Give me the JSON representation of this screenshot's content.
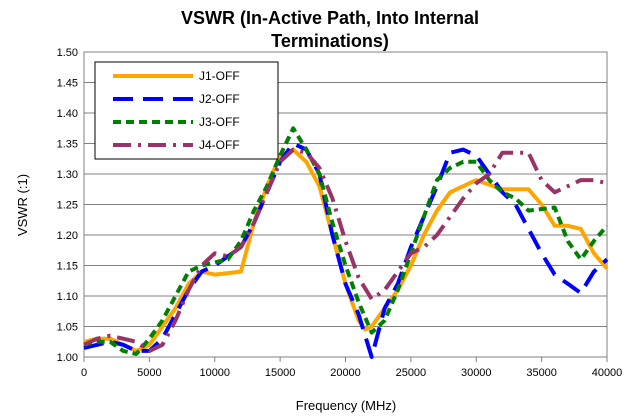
{
  "chart_data": {
    "type": "line",
    "title_line1": "VSWR (In-Active Path, Into Internal",
    "title_line2": "Terminations)",
    "xlabel": "Frequency (MHz)",
    "ylabel": "VSWR (:1)",
    "xlim": [
      0,
      40000
    ],
    "ylim": [
      1.0,
      1.5
    ],
    "xticks": [
      0,
      5000,
      10000,
      15000,
      20000,
      25000,
      30000,
      35000,
      40000
    ],
    "yticks": [
      1.0,
      1.05,
      1.1,
      1.15,
      1.2,
      1.25,
      1.3,
      1.35,
      1.4,
      1.45,
      1.5
    ],
    "grid": true,
    "legend_position": "top-left",
    "series": [
      {
        "name": "J1-OFF",
        "color": "#FFA500",
        "dash": "solid",
        "points": [
          [
            0,
            1.025
          ],
          [
            1000,
            1.03
          ],
          [
            2000,
            1.03
          ],
          [
            3000,
            1.02
          ],
          [
            4000,
            1.01
          ],
          [
            5000,
            1.02
          ],
          [
            6000,
            1.05
          ],
          [
            7000,
            1.08
          ],
          [
            8000,
            1.12
          ],
          [
            9000,
            1.14
          ],
          [
            10000,
            1.135
          ],
          [
            12000,
            1.14
          ],
          [
            13000,
            1.22
          ],
          [
            14000,
            1.28
          ],
          [
            15000,
            1.33
          ],
          [
            16000,
            1.34
          ],
          [
            17000,
            1.32
          ],
          [
            18000,
            1.28
          ],
          [
            19000,
            1.2
          ],
          [
            20000,
            1.12
          ],
          [
            21000,
            1.06
          ],
          [
            21500,
            1.045
          ],
          [
            22000,
            1.05
          ],
          [
            23000,
            1.08
          ],
          [
            24000,
            1.11
          ],
          [
            25000,
            1.15
          ],
          [
            26000,
            1.2
          ],
          [
            27000,
            1.24
          ],
          [
            28000,
            1.27
          ],
          [
            30000,
            1.29
          ],
          [
            32000,
            1.275
          ],
          [
            34000,
            1.275
          ],
          [
            35000,
            1.25
          ],
          [
            36000,
            1.215
          ],
          [
            37000,
            1.215
          ],
          [
            38000,
            1.21
          ],
          [
            39000,
            1.17
          ],
          [
            40000,
            1.145
          ]
        ]
      },
      {
        "name": "J2-OFF",
        "color": "#0000FF",
        "dash": "long",
        "points": [
          [
            0,
            1.015
          ],
          [
            1000,
            1.02
          ],
          [
            2000,
            1.025
          ],
          [
            3000,
            1.02
          ],
          [
            4000,
            1.01
          ],
          [
            5000,
            1.01
          ],
          [
            6000,
            1.03
          ],
          [
            7000,
            1.07
          ],
          [
            8000,
            1.11
          ],
          [
            9000,
            1.14
          ],
          [
            10000,
            1.15
          ],
          [
            12000,
            1.18
          ],
          [
            13000,
            1.22
          ],
          [
            14000,
            1.27
          ],
          [
            15000,
            1.32
          ],
          [
            16000,
            1.35
          ],
          [
            17000,
            1.34
          ],
          [
            18000,
            1.3
          ],
          [
            19000,
            1.2
          ],
          [
            20000,
            1.12
          ],
          [
            21000,
            1.07
          ],
          [
            22000,
            1.0
          ],
          [
            22500,
            1.04
          ],
          [
            23000,
            1.08
          ],
          [
            24000,
            1.12
          ],
          [
            25000,
            1.18
          ],
          [
            26000,
            1.23
          ],
          [
            27000,
            1.28
          ],
          [
            28000,
            1.335
          ],
          [
            29000,
            1.34
          ],
          [
            30000,
            1.33
          ],
          [
            31000,
            1.3
          ],
          [
            32000,
            1.27
          ],
          [
            33000,
            1.25
          ],
          [
            34000,
            1.21
          ],
          [
            35000,
            1.17
          ],
          [
            36000,
            1.135
          ],
          [
            37000,
            1.12
          ],
          [
            38000,
            1.105
          ],
          [
            39000,
            1.14
          ],
          [
            40000,
            1.16
          ]
        ]
      },
      {
        "name": "J3-OFF",
        "color": "#008000",
        "dash": "short",
        "points": [
          [
            0,
            1.02
          ],
          [
            1000,
            1.025
          ],
          [
            2000,
            1.025
          ],
          [
            3000,
            1.01
          ],
          [
            4000,
            1.005
          ],
          [
            5000,
            1.03
          ],
          [
            6000,
            1.06
          ],
          [
            7000,
            1.1
          ],
          [
            8000,
            1.14
          ],
          [
            9000,
            1.15
          ],
          [
            10000,
            1.155
          ],
          [
            11000,
            1.16
          ],
          [
            12000,
            1.19
          ],
          [
            13000,
            1.24
          ],
          [
            14000,
            1.28
          ],
          [
            15000,
            1.33
          ],
          [
            16000,
            1.375
          ],
          [
            17000,
            1.34
          ],
          [
            18000,
            1.3
          ],
          [
            19000,
            1.22
          ],
          [
            20000,
            1.15
          ],
          [
            21000,
            1.09
          ],
          [
            22000,
            1.04
          ],
          [
            23000,
            1.06
          ],
          [
            24000,
            1.11
          ],
          [
            25000,
            1.17
          ],
          [
            26000,
            1.23
          ],
          [
            27000,
            1.29
          ],
          [
            28000,
            1.31
          ],
          [
            29000,
            1.32
          ],
          [
            30000,
            1.32
          ],
          [
            31000,
            1.29
          ],
          [
            32000,
            1.27
          ],
          [
            33000,
            1.26
          ],
          [
            34000,
            1.24
          ],
          [
            36000,
            1.245
          ],
          [
            37000,
            1.19
          ],
          [
            38000,
            1.16
          ],
          [
            39000,
            1.19
          ],
          [
            40000,
            1.215
          ]
        ]
      },
      {
        "name": "J4-OFF",
        "color": "#993366",
        "dash": "dashdot",
        "points": [
          [
            0,
            1.02
          ],
          [
            1000,
            1.03
          ],
          [
            2000,
            1.035
          ],
          [
            3000,
            1.03
          ],
          [
            4000,
            1.025
          ],
          [
            5000,
            1.01
          ],
          [
            6000,
            1.02
          ],
          [
            7000,
            1.06
          ],
          [
            8000,
            1.11
          ],
          [
            9000,
            1.15
          ],
          [
            10000,
            1.17
          ],
          [
            11000,
            1.165
          ],
          [
            12000,
            1.18
          ],
          [
            13000,
            1.22
          ],
          [
            14000,
            1.27
          ],
          [
            15000,
            1.32
          ],
          [
            16000,
            1.34
          ],
          [
            17000,
            1.335
          ],
          [
            18000,
            1.31
          ],
          [
            19000,
            1.26
          ],
          [
            20000,
            1.19
          ],
          [
            21000,
            1.13
          ],
          [
            22000,
            1.095
          ],
          [
            23000,
            1.11
          ],
          [
            24000,
            1.14
          ],
          [
            25000,
            1.17
          ],
          [
            26000,
            1.18
          ],
          [
            27000,
            1.2
          ],
          [
            28000,
            1.23
          ],
          [
            29000,
            1.26
          ],
          [
            30000,
            1.285
          ],
          [
            31000,
            1.3
          ],
          [
            32000,
            1.335
          ],
          [
            33000,
            1.335
          ],
          [
            34000,
            1.335
          ],
          [
            35000,
            1.29
          ],
          [
            36000,
            1.27
          ],
          [
            37000,
            1.28
          ],
          [
            38000,
            1.29
          ],
          [
            39000,
            1.29
          ],
          [
            40000,
            1.285
          ]
        ]
      }
    ]
  }
}
